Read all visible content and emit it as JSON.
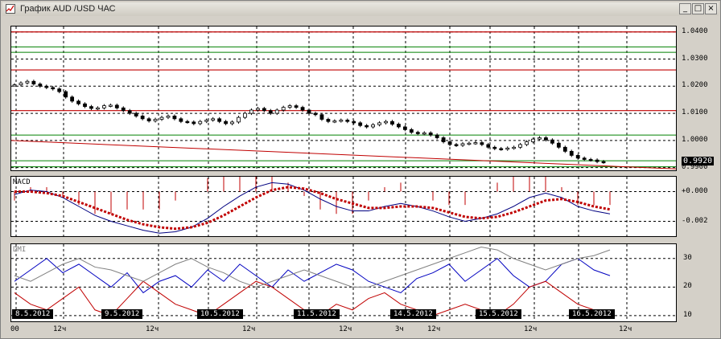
{
  "window": {
    "title": "График AUD /USD  ЧАС",
    "minimize": "_",
    "maximize": "□",
    "close": "×"
  },
  "price_pane": {
    "y_ticks": [
      "1.0400",
      "1.0300",
      "1.0200",
      "1.0100",
      "1.0000",
      "0.9900"
    ],
    "current_price": "0.9920"
  },
  "macd_pane": {
    "label": "MACD",
    "y_ticks": [
      "+0.000",
      "-0.002"
    ]
  },
  "dmi_pane": {
    "label": "DMI",
    "y_ticks": [
      "30",
      "20",
      "10"
    ]
  },
  "time_axis": {
    "dates": [
      "8.5.2012",
      "9.5.2012",
      "10.5.2012",
      "11.5.2012",
      "14.5.2012",
      "15.5.2012",
      "16.5.2012"
    ],
    "hour_ticks": [
      "00",
      "12ч",
      "12ч",
      "12ч",
      "12ч",
      "3ч",
      "12ч",
      "12ч",
      "12ч"
    ]
  },
  "colors": {
    "grid": "#000000",
    "resistance": "#c00000",
    "support_green": "#008000",
    "trend": "#c00000",
    "macd_line": "#000080",
    "macd_signal": "#c00000",
    "di_plus": "#0000c0",
    "di_minus": "#c00000",
    "adx": "#808080"
  },
  "chart_data": [
    {
      "type": "candlestick",
      "title": "",
      "ylim": [
        0.989,
        1.042
      ],
      "y_ticks": [
        1.04,
        1.03,
        1.02,
        1.01,
        1.0,
        0.99
      ],
      "close": [
        1.0205,
        1.0212,
        1.0218,
        1.0208,
        1.02,
        1.0195,
        1.019,
        1.018,
        1.016,
        1.0145,
        1.0135,
        1.0125,
        1.0118,
        1.012,
        1.0128,
        1.013,
        1.012,
        1.011,
        1.01,
        1.009,
        1.008,
        1.0072,
        1.0078,
        1.0085,
        1.009,
        1.008,
        1.007,
        1.0068,
        1.0062,
        1.007,
        1.0075,
        1.008,
        1.007,
        1.0062,
        1.0068,
        1.0085,
        1.01,
        1.0112,
        1.0118,
        1.011,
        1.01,
        1.0112,
        1.0122,
        1.0128,
        1.0122,
        1.0112,
        1.01,
        1.0095,
        1.0078,
        1.007,
        1.0072,
        1.0075,
        1.007,
        1.0065,
        1.0055,
        1.005,
        1.0058,
        1.0065,
        1.007,
        1.006,
        1.005,
        1.004,
        1.003,
        1.0025,
        1.0028,
        1.002,
        1.001,
        0.9995,
        0.9985,
        0.9982,
        0.9988,
        0.999,
        0.9992,
        0.9985,
        0.9975,
        0.997,
        0.9968,
        0.9972,
        0.9975,
        0.9985,
        0.9995,
        1.0005,
        1.001,
        1.0002,
        0.999,
        0.9975,
        0.996,
        0.9945,
        0.9935,
        0.993,
        0.9928,
        0.9922,
        0.992
      ],
      "resistance_levels": [
        1.04,
        1.026,
        1.011
      ],
      "support_levels": [
        1.0345,
        1.0325,
        1.002,
        0.9925,
        0.9903
      ],
      "current": 0.992
    },
    {
      "type": "line",
      "title": "MACD",
      "ylim": [
        -0.003,
        0.001
      ],
      "y_ticks": [
        0.0,
        -0.002
      ],
      "series": [
        {
          "values": [
            -0.0002,
            0.0001,
            0.0,
            -0.0004,
            -0.001,
            -0.0016,
            -0.002,
            -0.0023,
            -0.0026,
            -0.0028,
            -0.0027,
            -0.0024,
            -0.0018,
            -0.001,
            -0.0003,
            0.0003,
            0.0006,
            0.0005,
            0.0001,
            -0.0005,
            -0.001,
            -0.0013,
            -0.0013,
            -0.001,
            -0.0008,
            -0.001,
            -0.0013,
            -0.0017,
            -0.002,
            -0.0018,
            -0.0015,
            -0.001,
            -0.0004,
            -0.0001,
            -0.0004,
            -0.001,
            -0.0013,
            -0.0015
          ]
        },
        {
          "values": [
            0.0,
            0.0,
            -0.0001,
            -0.0003,
            -0.0007,
            -0.0011,
            -0.0015,
            -0.0019,
            -0.0022,
            -0.0024,
            -0.0025,
            -0.0024,
            -0.0021,
            -0.0016,
            -0.001,
            -0.0004,
            0.0001,
            0.0003,
            0.0002,
            -0.0001,
            -0.0005,
            -0.0008,
            -0.0011,
            -0.0011,
            -0.001,
            -0.001,
            -0.0011,
            -0.0014,
            -0.0017,
            -0.0018,
            -0.0017,
            -0.0014,
            -0.001,
            -0.0006,
            -0.0005,
            -0.0007,
            -0.001,
            -0.0012
          ]
        }
      ]
    },
    {
      "type": "line",
      "title": "DMI",
      "ylim": [
        8,
        35
      ],
      "y_ticks": [
        30,
        20,
        10
      ],
      "series": [
        {
          "values": [
            22,
            26,
            30,
            25,
            28,
            24,
            20,
            25,
            18,
            22,
            24,
            20,
            26,
            22,
            28,
            24,
            20,
            26,
            22,
            25,
            28,
            26,
            22,
            20,
            18,
            23,
            25,
            28,
            22,
            26,
            30,
            24,
            20,
            22,
            28,
            30,
            26,
            24
          ]
        },
        {
          "values": [
            18,
            14,
            12,
            16,
            20,
            12,
            10,
            16,
            22,
            18,
            14,
            12,
            10,
            14,
            18,
            22,
            20,
            16,
            12,
            10,
            14,
            12,
            16,
            18,
            14,
            12,
            10,
            12,
            14,
            12,
            10,
            14,
            20,
            22,
            18,
            14,
            12,
            10
          ]
        },
        {
          "values": [
            24,
            22,
            25,
            28,
            30,
            27,
            26,
            24,
            22,
            25,
            28,
            30,
            27,
            25,
            22,
            20,
            22,
            24,
            26,
            24,
            22,
            20,
            20,
            22,
            24,
            26,
            28,
            30,
            32,
            34,
            33,
            30,
            28,
            26,
            28,
            30,
            31,
            33
          ]
        }
      ]
    }
  ]
}
